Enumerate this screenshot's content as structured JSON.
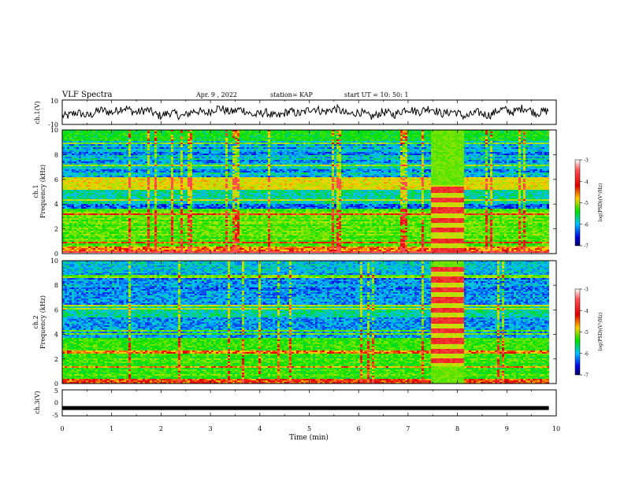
{
  "header": {
    "title": "VLF Spectra",
    "date": "Apr. 9 , 2022",
    "station": "station= KAP",
    "start": "start UT = 10: 50: 1"
  },
  "chart_data": [
    {
      "type": "line",
      "panel": "ch1-waveform",
      "ylabel": "ch.1(V)",
      "yticks": [
        "10",
        "-10"
      ],
      "ylim": [
        -10,
        10
      ],
      "xlim": [
        0,
        9.85
      ],
      "description_values": "noisy waveform roughly between -6 and 6 V"
    },
    {
      "type": "heatmap",
      "panel": "ch1-spectrogram",
      "ylabel_top": "ch.1",
      "ylabel": "Frequency (kHz)",
      "yticks": [
        "0",
        "2",
        "4",
        "6",
        "8",
        "10"
      ],
      "ylim": [
        0,
        10
      ],
      "xlim": [
        0,
        9.85
      ],
      "colorbar": {
        "label": "log(PSD)(V²/Hz)",
        "ticks": [
          "-3",
          "-4",
          "-5",
          "-6",
          "-7"
        ],
        "range": [
          -7,
          -3
        ]
      },
      "event_interval_min": [
        7.45,
        8.1
      ],
      "event_band_khz": [
        0,
        5.6
      ]
    },
    {
      "type": "heatmap",
      "panel": "ch2-spectrogram",
      "ylabel_top": "ch.2",
      "ylabel": "Frequency (kHz)",
      "yticks": [
        "0",
        "2",
        "4",
        "6",
        "8",
        "10"
      ],
      "ylim": [
        0,
        10
      ],
      "xlim": [
        0,
        9.85
      ],
      "colorbar": {
        "label": "log(PSD)(V²/Hz)",
        "ticks": [
          "-3",
          "-4",
          "-5",
          "-6",
          "-7"
        ],
        "range": [
          -7,
          -3
        ]
      },
      "event_interval_min": [
        7.45,
        8.1
      ],
      "event_band_khz": [
        1.5,
        9.6
      ]
    },
    {
      "type": "line",
      "panel": "ch3-waveform",
      "ylabel": "ch.3(V)",
      "yticks": [
        "5",
        "0",
        "-5"
      ],
      "ylim": [
        -5,
        5
      ],
      "xlim": [
        0,
        9.85
      ],
      "values_note": "constant near -2 V",
      "level": -2
    }
  ],
  "xaxis": {
    "label": "Time (min)",
    "ticks": [
      "0",
      "1",
      "2",
      "3",
      "4",
      "5",
      "6",
      "7",
      "8",
      "9",
      "10"
    ],
    "range": [
      0,
      10
    ]
  }
}
